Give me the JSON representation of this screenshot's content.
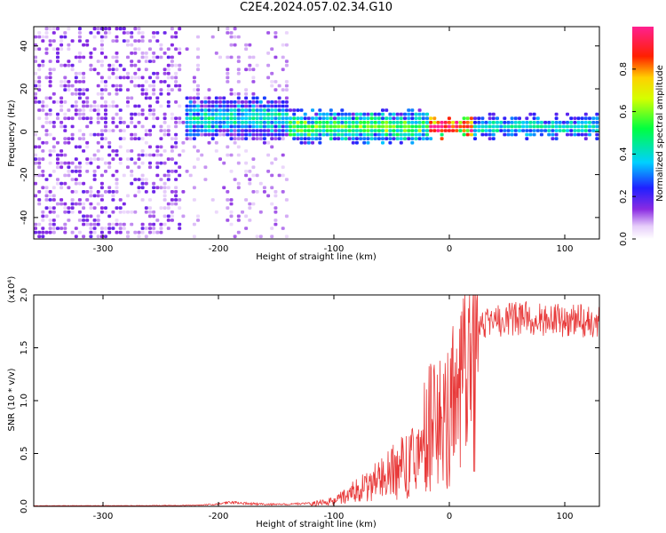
{
  "title": "C2E4.2024.057.02.34.G10",
  "chart_data": [
    {
      "type": "heatmap",
      "title": "C2E4.2024.057.02.34.G10",
      "xlabel": "Height of straight line (km)",
      "ylabel": "Frequency (Hz)",
      "xlim": [
        -360,
        130
      ],
      "ylim": [
        -50,
        49
      ],
      "xticks": [
        -300,
        -200,
        -100,
        0,
        100
      ],
      "yticks": [
        -40,
        -20,
        0,
        20,
        40
      ],
      "colorbar": {
        "label": "Normalized spectral amplitude",
        "range": [
          0,
          1
        ],
        "ticks": [
          0.0,
          0.2,
          0.4,
          0.6,
          0.8
        ],
        "colormap": "rainbow (white-violet-blue-cyan-green-yellow-red-magenta)"
      },
      "features": [
        {
          "region": "noise",
          "x_range": [
            -360,
            -235
          ],
          "freq_range": [
            -50,
            49
          ],
          "amplitude": "low-moderate"
        },
        {
          "region": "noise-bands",
          "x_range": [
            -235,
            -140
          ],
          "freq_range": [
            -50,
            49
          ],
          "amplitude": "low"
        },
        {
          "region": "signal",
          "x_range": [
            -230,
            -140
          ],
          "freq_center": 5,
          "freq_width": 15,
          "amplitude": "moderate"
        },
        {
          "region": "signal",
          "x_range": [
            -140,
            -20
          ],
          "freq_center": 1,
          "freq_width": 10,
          "amplitude": "moderate-high"
        },
        {
          "region": "signal",
          "x_range": [
            -20,
            20
          ],
          "freq_center": 1,
          "freq_width": 4,
          "amplitude": "high"
        },
        {
          "region": "signal",
          "x_range": [
            20,
            130
          ],
          "freq_center": 1,
          "freq_width": 5,
          "amplitude": "moderate"
        }
      ]
    },
    {
      "type": "line",
      "xlabel": "Height of straight line (km)",
      "ylabel": "SNR (10 * v/v)",
      "y_multiplier": "(x10⁴)",
      "xlim": [
        -360,
        130
      ],
      "ylim": [
        0,
        2.0
      ],
      "xticks": [
        -300,
        -200,
        -100,
        0,
        100
      ],
      "yticks": [
        0.0,
        0.5,
        1.0,
        1.5,
        2.0
      ],
      "ytick_labels": [
        "0.0",
        "0.5",
        "1.0",
        "1.5",
        "2.0"
      ],
      "color": "#e83a3a",
      "series": [
        {
          "x": [
            -360,
            -330,
            -300,
            -270,
            -240,
            -220,
            -200,
            -190,
            -180,
            -160,
            -140,
            -120,
            -100,
            -90,
            -80,
            -70,
            -60,
            -50,
            -40,
            -30,
            -25,
            -20,
            -15,
            -10,
            -5,
            0,
            5,
            10,
            15,
            20,
            25,
            30,
            40,
            60,
            80,
            100,
            120,
            130
          ],
          "y": [
            0.005,
            0.006,
            0.006,
            0.007,
            0.008,
            0.01,
            0.02,
            0.04,
            0.03,
            0.02,
            0.02,
            0.03,
            0.06,
            0.12,
            0.18,
            0.25,
            0.3,
            0.38,
            0.45,
            0.55,
            0.7,
            0.85,
            0.95,
            1.0,
            0.9,
            1.05,
            1.2,
            1.4,
            1.6,
            1.7,
            1.72,
            1.75,
            1.75,
            1.78,
            1.77,
            1.76,
            1.75,
            1.76
          ]
        }
      ]
    }
  ]
}
